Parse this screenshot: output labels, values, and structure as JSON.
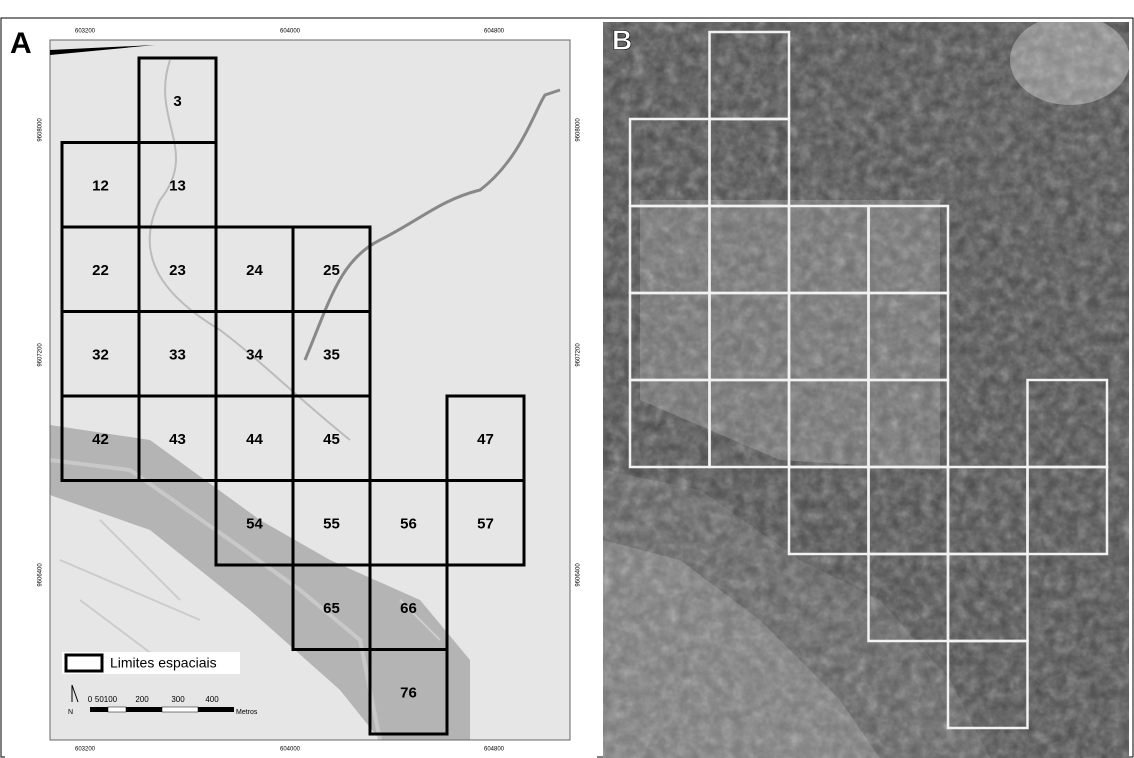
{
  "panels": {
    "a": {
      "label": "A",
      "cells": [
        "3",
        "12",
        "13",
        "22",
        "23",
        "24",
        "25",
        "32",
        "33",
        "34",
        "35",
        "42",
        "43",
        "44",
        "45",
        "47",
        "54",
        "55",
        "56",
        "57",
        "65",
        "66",
        "76"
      ],
      "legend": "Limites espaciais",
      "north": "N",
      "scale": {
        "ticks": [
          "0",
          "50100",
          "200",
          "300",
          "400"
        ],
        "unit": "Metros"
      },
      "x_coords": [
        "603200",
        "604000",
        "604800"
      ],
      "y_coords": [
        "9608000",
        "9607200",
        "9606400"
      ]
    },
    "b": {
      "label": "B"
    }
  }
}
